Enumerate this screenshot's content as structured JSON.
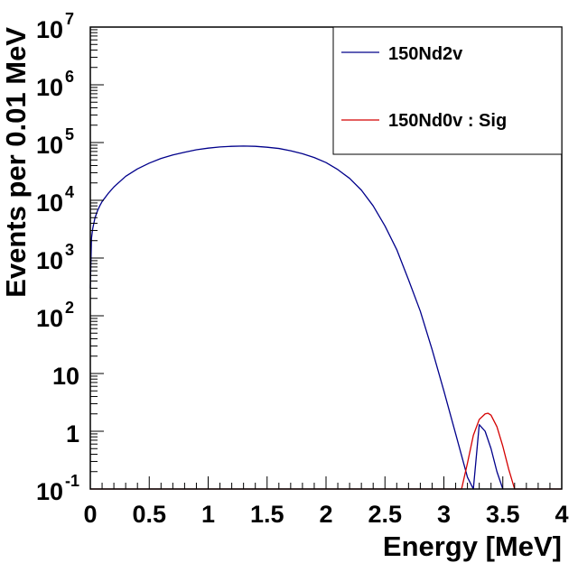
{
  "chart_data": {
    "type": "line",
    "title": "",
    "xlabel": "Energy [MeV]",
    "ylabel": "Events per 0.01 MeV",
    "xlim": [
      0,
      4
    ],
    "ylim": [
      0.1,
      10000000
    ],
    "yscale": "log",
    "xticks": [
      {
        "value": 0,
        "label": "0"
      },
      {
        "value": 0.5,
        "label": "0.5"
      },
      {
        "value": 1,
        "label": "1"
      },
      {
        "value": 1.5,
        "label": "1.5"
      },
      {
        "value": 2,
        "label": "2"
      },
      {
        "value": 2.5,
        "label": "2.5"
      },
      {
        "value": 3,
        "label": "3"
      },
      {
        "value": 3.5,
        "label": "3.5"
      },
      {
        "value": 4,
        "label": "4"
      }
    ],
    "yticks": [
      {
        "value": 0.1,
        "base": "10",
        "exp": "-1"
      },
      {
        "value": 1,
        "base": "1",
        "exp": ""
      },
      {
        "value": 10,
        "base": "10",
        "exp": ""
      },
      {
        "value": 100,
        "base": "10",
        "exp": "2"
      },
      {
        "value": 1000,
        "base": "10",
        "exp": "3"
      },
      {
        "value": 10000,
        "base": "10",
        "exp": "4"
      },
      {
        "value": 100000,
        "base": "10",
        "exp": "5"
      },
      {
        "value": 1000000,
        "base": "10",
        "exp": "6"
      },
      {
        "value": 10000000,
        "base": "10",
        "exp": "7"
      }
    ],
    "legend_position": "top-right",
    "series": [
      {
        "name": "150Nd2v",
        "color": "#00008b",
        "x": [
          0.0,
          0.01,
          0.02,
          0.04,
          0.06,
          0.08,
          0.1,
          0.15,
          0.2,
          0.3,
          0.4,
          0.5,
          0.6,
          0.7,
          0.8,
          0.9,
          1.0,
          1.1,
          1.2,
          1.3,
          1.4,
          1.5,
          1.6,
          1.7,
          1.8,
          1.9,
          2.0,
          2.1,
          2.2,
          2.3,
          2.4,
          2.5,
          2.6,
          2.7,
          2.8,
          2.9,
          3.0,
          3.1,
          3.2,
          3.25,
          3.3,
          3.35,
          3.4,
          3.45,
          3.5
        ],
        "y": [
          300,
          2200,
          3200,
          5000,
          6500,
          8000,
          9500,
          13000,
          17000,
          26000,
          35000,
          44000,
          53000,
          61000,
          68000,
          75000,
          80000,
          84000,
          86000,
          87000,
          86000,
          83000,
          79000,
          72000,
          64000,
          55000,
          45000,
          34000,
          24000,
          15000,
          8000,
          3600,
          1400,
          420,
          120,
          26,
          5,
          0.9,
          0.16,
          0.05,
          1.3,
          1.0,
          0.5,
          0.2,
          0.08
        ]
      },
      {
        "name": "150Nd0v : Sig",
        "color": "#d40000",
        "x": [
          3.15,
          3.2,
          3.25,
          3.3,
          3.35,
          3.375,
          3.4,
          3.45,
          3.5,
          3.55,
          3.6
        ],
        "y": [
          0.1,
          0.28,
          0.85,
          1.6,
          2.0,
          2.05,
          1.9,
          1.2,
          0.55,
          0.22,
          0.1
        ]
      }
    ]
  }
}
